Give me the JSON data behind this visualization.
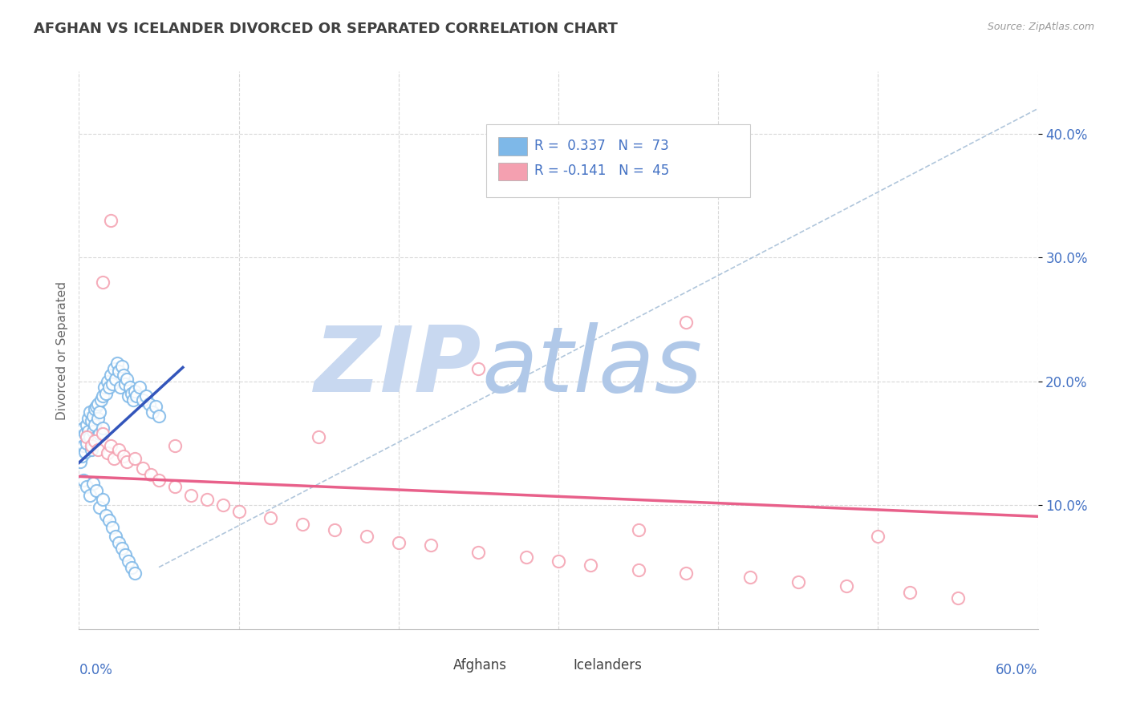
{
  "title": "AFGHAN VS ICELANDER DIVORCED OR SEPARATED CORRELATION CHART",
  "source": "Source: ZipAtlas.com",
  "ylabel": "Divorced or Separated",
  "y_ticks": [
    0.1,
    0.2,
    0.3,
    0.4
  ],
  "y_tick_labels": [
    "10.0%",
    "20.0%",
    "30.0%",
    "40.0%"
  ],
  "x_min": 0.0,
  "x_max": 0.6,
  "y_min": 0.0,
  "y_max": 0.45,
  "afghan_R": 0.337,
  "afghan_N": 73,
  "icelander_R": -0.141,
  "icelander_N": 45,
  "afghan_color": "#7EB8E8",
  "icelander_color": "#F4A0B0",
  "afghan_line_color": "#3355BB",
  "icelander_line_color": "#E8608A",
  "watermark_zip": "ZIP",
  "watermark_atlas": "atlas",
  "watermark_color": "#C8D8F0",
  "grid_color": "#D8D8D8",
  "tick_color": "#4472C4",
  "title_color": "#404040",
  "source_color": "#999999",
  "diag_line_color": "#A8C0D8",
  "legend_text_color": "#4472C4",
  "bottom_legend_text_color": "#404040"
}
